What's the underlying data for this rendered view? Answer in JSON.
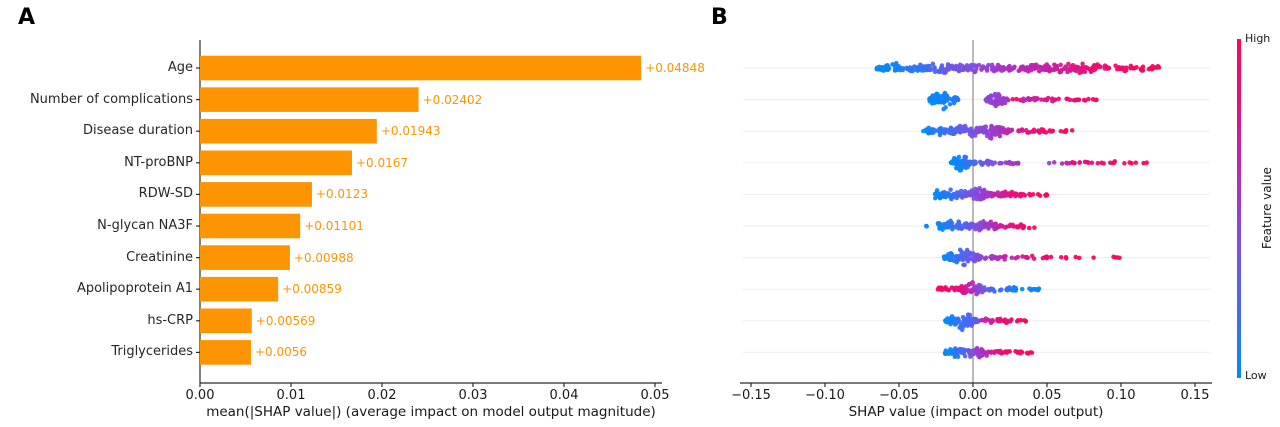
{
  "figure": {
    "panel_a_letter": "A",
    "panel_b_letter": "B"
  },
  "colors": {
    "bar_orange": "#fd9502",
    "axis_text": "#191919",
    "spine": "#2b2b2b",
    "zero_line": "#8c8c8c",
    "grid_line": "#ededed",
    "colormap_stops": [
      "#008bfb",
      "#4968f2",
      "#7d4fe2",
      "#b42cba",
      "#e31181",
      "#ff0457"
    ]
  },
  "chart_data": [
    {
      "type": "bar",
      "panel": "A",
      "orientation": "horizontal",
      "categories": [
        "Age",
        "Number of complications",
        "Disease duration",
        "NT-proBNP",
        "RDW-SD",
        "N-glycan NA3F",
        "Creatinine",
        "Apolipoprotein A1",
        "hs-CRP",
        "Triglycerides"
      ],
      "values": [
        0.04848,
        0.02402,
        0.01943,
        0.0167,
        0.0123,
        0.01101,
        0.00988,
        0.00859,
        0.00569,
        0.0056
      ],
      "value_labels": [
        "+0.04848",
        "+0.02402",
        "+0.01943",
        "+0.0167",
        "+0.0123",
        "+0.01101",
        "+0.00988",
        "+0.00859",
        "+0.00569",
        "+0.0056"
      ],
      "xlabel": "mean(|SHAP value|) (average impact on model output magnitude)",
      "xtick_labels": [
        "0.00",
        "0.01",
        "0.02",
        "0.03",
        "0.04",
        "0.05"
      ],
      "xtick_values": [
        0,
        0.01,
        0.02,
        0.03,
        0.04,
        0.05
      ],
      "xlim": [
        0,
        0.0508
      ],
      "grid": false,
      "legend": null
    },
    {
      "type": "scatter",
      "subtype": "shap_beeswarm",
      "panel": "B",
      "categories": [
        "Age",
        "Number of complications",
        "Disease duration",
        "NT-proBNP",
        "RDW-SD",
        "N-glycan NA3F",
        "Creatinine",
        "Apolipoprotein A1",
        "hs-CRP",
        "Triglycerides"
      ],
      "xlabel": "SHAP value (impact on model output)",
      "xtick_labels": [
        "−0.15",
        "−0.10",
        "−0.05",
        "0.00",
        "0.05",
        "0.10",
        "0.15"
      ],
      "xtick_values": [
        -0.15,
        -0.1,
        -0.05,
        0,
        0.05,
        0.1,
        0.15
      ],
      "xlim": [
        -0.157,
        0.1615
      ],
      "zero_line": 0,
      "grid": "horizontal-faint",
      "colorbar": {
        "high_label": "High",
        "low_label": "Low",
        "axis_label": "Feature value"
      },
      "rows": [
        {
          "feature": "Age",
          "x_range": [
            -0.066,
            0.126
          ],
          "segments": [
            {
              "x0": -0.066,
              "x1": -0.03,
              "n": 60,
              "w": 6.0,
              "t0": 0.0,
              "t1": 0.18,
              "shape": "band"
            },
            {
              "x0": -0.034,
              "x1": -0.004,
              "n": 55,
              "w": 5.5,
              "t0": 0.15,
              "t1": 0.42,
              "shape": "band"
            },
            {
              "x0": -0.006,
              "x1": 0.026,
              "n": 50,
              "w": 5.5,
              "t0": 0.38,
              "t1": 0.58,
              "shape": "band"
            },
            {
              "x0": 0.024,
              "x1": 0.05,
              "n": 45,
              "w": 5.0,
              "t0": 0.55,
              "t1": 0.72,
              "shape": "band"
            },
            {
              "x0": 0.044,
              "x1": 0.086,
              "n": 75,
              "w": 7.0,
              "t0": 0.62,
              "t1": 0.9,
              "shape": "band"
            },
            {
              "x0": 0.084,
              "x1": 0.126,
              "n": 40,
              "w": 4.0,
              "t0": 0.85,
              "t1": 1.0,
              "shape": "band"
            }
          ]
        },
        {
          "feature": "Number of complications",
          "x_range": [
            -0.03,
            0.087
          ],
          "segments": [
            {
              "x0": -0.03,
              "x1": -0.01,
              "n": 80,
              "w": 10.0,
              "t0": 0.0,
              "t1": 0.08,
              "shape": "blob"
            },
            {
              "x0": 0.008,
              "x1": 0.024,
              "n": 50,
              "w": 8.0,
              "t0": 0.45,
              "t1": 0.55,
              "shape": "blob"
            },
            {
              "x0": 0.026,
              "x1": 0.032,
              "n": 3,
              "w": 1.5,
              "t0": 0.9,
              "t1": 1.0,
              "shape": "chain"
            },
            {
              "x0": 0.032,
              "x1": 0.062,
              "n": 28,
              "w": 2.5,
              "t0": 0.6,
              "t1": 0.9,
              "shape": "chain"
            },
            {
              "x0": 0.062,
              "x1": 0.087,
              "n": 14,
              "w": 2.0,
              "t0": 0.88,
              "t1": 1.0,
              "shape": "chain"
            }
          ]
        },
        {
          "feature": "Disease duration",
          "x_range": [
            -0.034,
            0.068
          ],
          "segments": [
            {
              "x0": -0.034,
              "x1": -0.012,
              "n": 40,
              "w": 5.0,
              "t0": 0.0,
              "t1": 0.22,
              "shape": "band"
            },
            {
              "x0": -0.014,
              "x1": 0.004,
              "n": 50,
              "w": 6.5,
              "t0": 0.2,
              "t1": 0.45,
              "shape": "band"
            },
            {
              "x0": 0.002,
              "x1": 0.024,
              "n": 70,
              "w": 8.5,
              "t0": 0.4,
              "t1": 0.62,
              "shape": "blob"
            },
            {
              "x0": 0.022,
              "x1": 0.052,
              "n": 30,
              "w": 3.0,
              "t0": 0.66,
              "t1": 0.95,
              "shape": "chain"
            },
            {
              "x0": 0.052,
              "x1": 0.068,
              "n": 9,
              "w": 1.8,
              "t0": 0.92,
              "t1": 1.0,
              "shape": "chain"
            }
          ]
        },
        {
          "feature": "NT-proBNP",
          "x_range": [
            -0.015,
            0.118
          ],
          "segments": [
            {
              "x0": -0.015,
              "x1": -0.001,
              "n": 75,
              "w": 10.0,
              "t0": 0.0,
              "t1": 0.15,
              "shape": "blob"
            },
            {
              "x0": -0.002,
              "x1": 0.012,
              "n": 22,
              "w": 3.0,
              "t0": 0.15,
              "t1": 0.38,
              "shape": "chain"
            },
            {
              "x0": 0.012,
              "x1": 0.032,
              "n": 18,
              "w": 2.2,
              "t0": 0.38,
              "t1": 0.58,
              "shape": "chain"
            },
            {
              "x0": 0.05,
              "x1": 0.072,
              "n": 9,
              "w": 1.6,
              "t0": 0.5,
              "t1": 0.75,
              "shape": "chain"
            },
            {
              "x0": 0.062,
              "x1": 0.118,
              "n": 22,
              "w": 1.8,
              "t0": 0.78,
              "t1": 1.0,
              "shape": "chain"
            }
          ]
        },
        {
          "feature": "RDW-SD",
          "x_range": [
            -0.026,
            0.05
          ],
          "segments": [
            {
              "x0": -0.026,
              "x1": -0.005,
              "n": 60,
              "w": 7.0,
              "t0": 0.0,
              "t1": 0.28,
              "shape": "band"
            },
            {
              "x0": -0.006,
              "x1": 0.013,
              "n": 60,
              "w": 7.0,
              "t0": 0.32,
              "t1": 0.6,
              "shape": "band"
            },
            {
              "x0": 0.013,
              "x1": 0.034,
              "n": 40,
              "w": 4.0,
              "t0": 0.62,
              "t1": 0.9,
              "shape": "band"
            },
            {
              "x0": 0.034,
              "x1": 0.05,
              "n": 10,
              "w": 2.0,
              "t0": 0.9,
              "t1": 1.0,
              "shape": "chain"
            }
          ]
        },
        {
          "feature": "N-glycan NA3F",
          "x_range": [
            -0.032,
            0.042
          ],
          "segments": [
            {
              "x0": -0.032,
              "x1": -0.029,
              "n": 2,
              "w": 1.0,
              "t0": 0.0,
              "t1": 0.06,
              "shape": "chain"
            },
            {
              "x0": -0.024,
              "x1": -0.002,
              "n": 60,
              "w": 7.5,
              "t0": 0.0,
              "t1": 0.3,
              "shape": "band"
            },
            {
              "x0": -0.003,
              "x1": 0.017,
              "n": 55,
              "w": 6.5,
              "t0": 0.34,
              "t1": 0.64,
              "shape": "band"
            },
            {
              "x0": 0.017,
              "x1": 0.042,
              "n": 26,
              "w": 3.0,
              "t0": 0.68,
              "t1": 1.0,
              "shape": "chain"
            }
          ]
        },
        {
          "feature": "Creatinine",
          "x_range": [
            -0.02,
            0.1
          ],
          "segments": [
            {
              "x0": -0.02,
              "x1": 0.006,
              "n": 85,
              "w": 10.0,
              "t0": 0.0,
              "t1": 0.45,
              "shape": "blob"
            },
            {
              "x0": 0.008,
              "x1": 0.042,
              "n": 30,
              "w": 2.8,
              "t0": 0.5,
              "t1": 0.82,
              "shape": "chain"
            },
            {
              "x0": 0.046,
              "x1": 0.072,
              "n": 11,
              "w": 1.6,
              "t0": 0.84,
              "t1": 1.0,
              "shape": "chain"
            },
            {
              "x0": 0.078,
              "x1": 0.1,
              "n": 5,
              "w": 1.2,
              "t0": 0.95,
              "t1": 1.0,
              "shape": "chain"
            }
          ]
        },
        {
          "feature": "Apolipoprotein A1",
          "x_range": [
            -0.024,
            0.045
          ],
          "segments": [
            {
              "x0": -0.024,
              "x1": -0.007,
              "n": 26,
              "w": 2.6,
              "t0": 1.0,
              "t1": 0.8,
              "shape": "chain"
            },
            {
              "x0": -0.01,
              "x1": 0.009,
              "n": 75,
              "w": 8.5,
              "t0": 0.85,
              "t1": 0.3,
              "shape": "blob"
            },
            {
              "x0": 0.009,
              "x1": 0.03,
              "n": 26,
              "w": 3.0,
              "t0": 0.25,
              "t1": 0.05,
              "shape": "chain"
            },
            {
              "x0": 0.03,
              "x1": 0.045,
              "n": 10,
              "w": 1.8,
              "t0": 0.08,
              "t1": 0.0,
              "shape": "chain"
            }
          ]
        },
        {
          "feature": "hs-CRP",
          "x_range": [
            -0.019,
            0.036
          ],
          "segments": [
            {
              "x0": -0.019,
              "x1": 0.004,
              "n": 80,
              "w": 9.5,
              "t0": 0.0,
              "t1": 0.3,
              "shape": "blob"
            },
            {
              "x0": 0.005,
              "x1": 0.027,
              "n": 26,
              "w": 3.0,
              "t0": 0.6,
              "t1": 0.95,
              "shape": "chain"
            },
            {
              "x0": 0.029,
              "x1": 0.036,
              "n": 6,
              "w": 1.3,
              "t0": 0.95,
              "t1": 1.0,
              "shape": "chain"
            }
          ]
        },
        {
          "feature": "Triglycerides",
          "x_range": [
            -0.019,
            0.04
          ],
          "segments": [
            {
              "x0": -0.019,
              "x1": 0.001,
              "n": 50,
              "w": 6.0,
              "t0": 0.0,
              "t1": 0.32,
              "shape": "band"
            },
            {
              "x0": -0.003,
              "x1": 0.012,
              "n": 40,
              "w": 6.5,
              "t0": 0.4,
              "t1": 0.68,
              "shape": "blob"
            },
            {
              "x0": 0.012,
              "x1": 0.026,
              "n": 14,
              "w": 2.0,
              "t0": 0.75,
              "t1": 1.0,
              "shape": "chain"
            },
            {
              "x0": 0.028,
              "x1": 0.04,
              "n": 10,
              "w": 1.6,
              "t0": 0.9,
              "t1": 1.0,
              "shape": "chain"
            }
          ]
        }
      ]
    }
  ]
}
